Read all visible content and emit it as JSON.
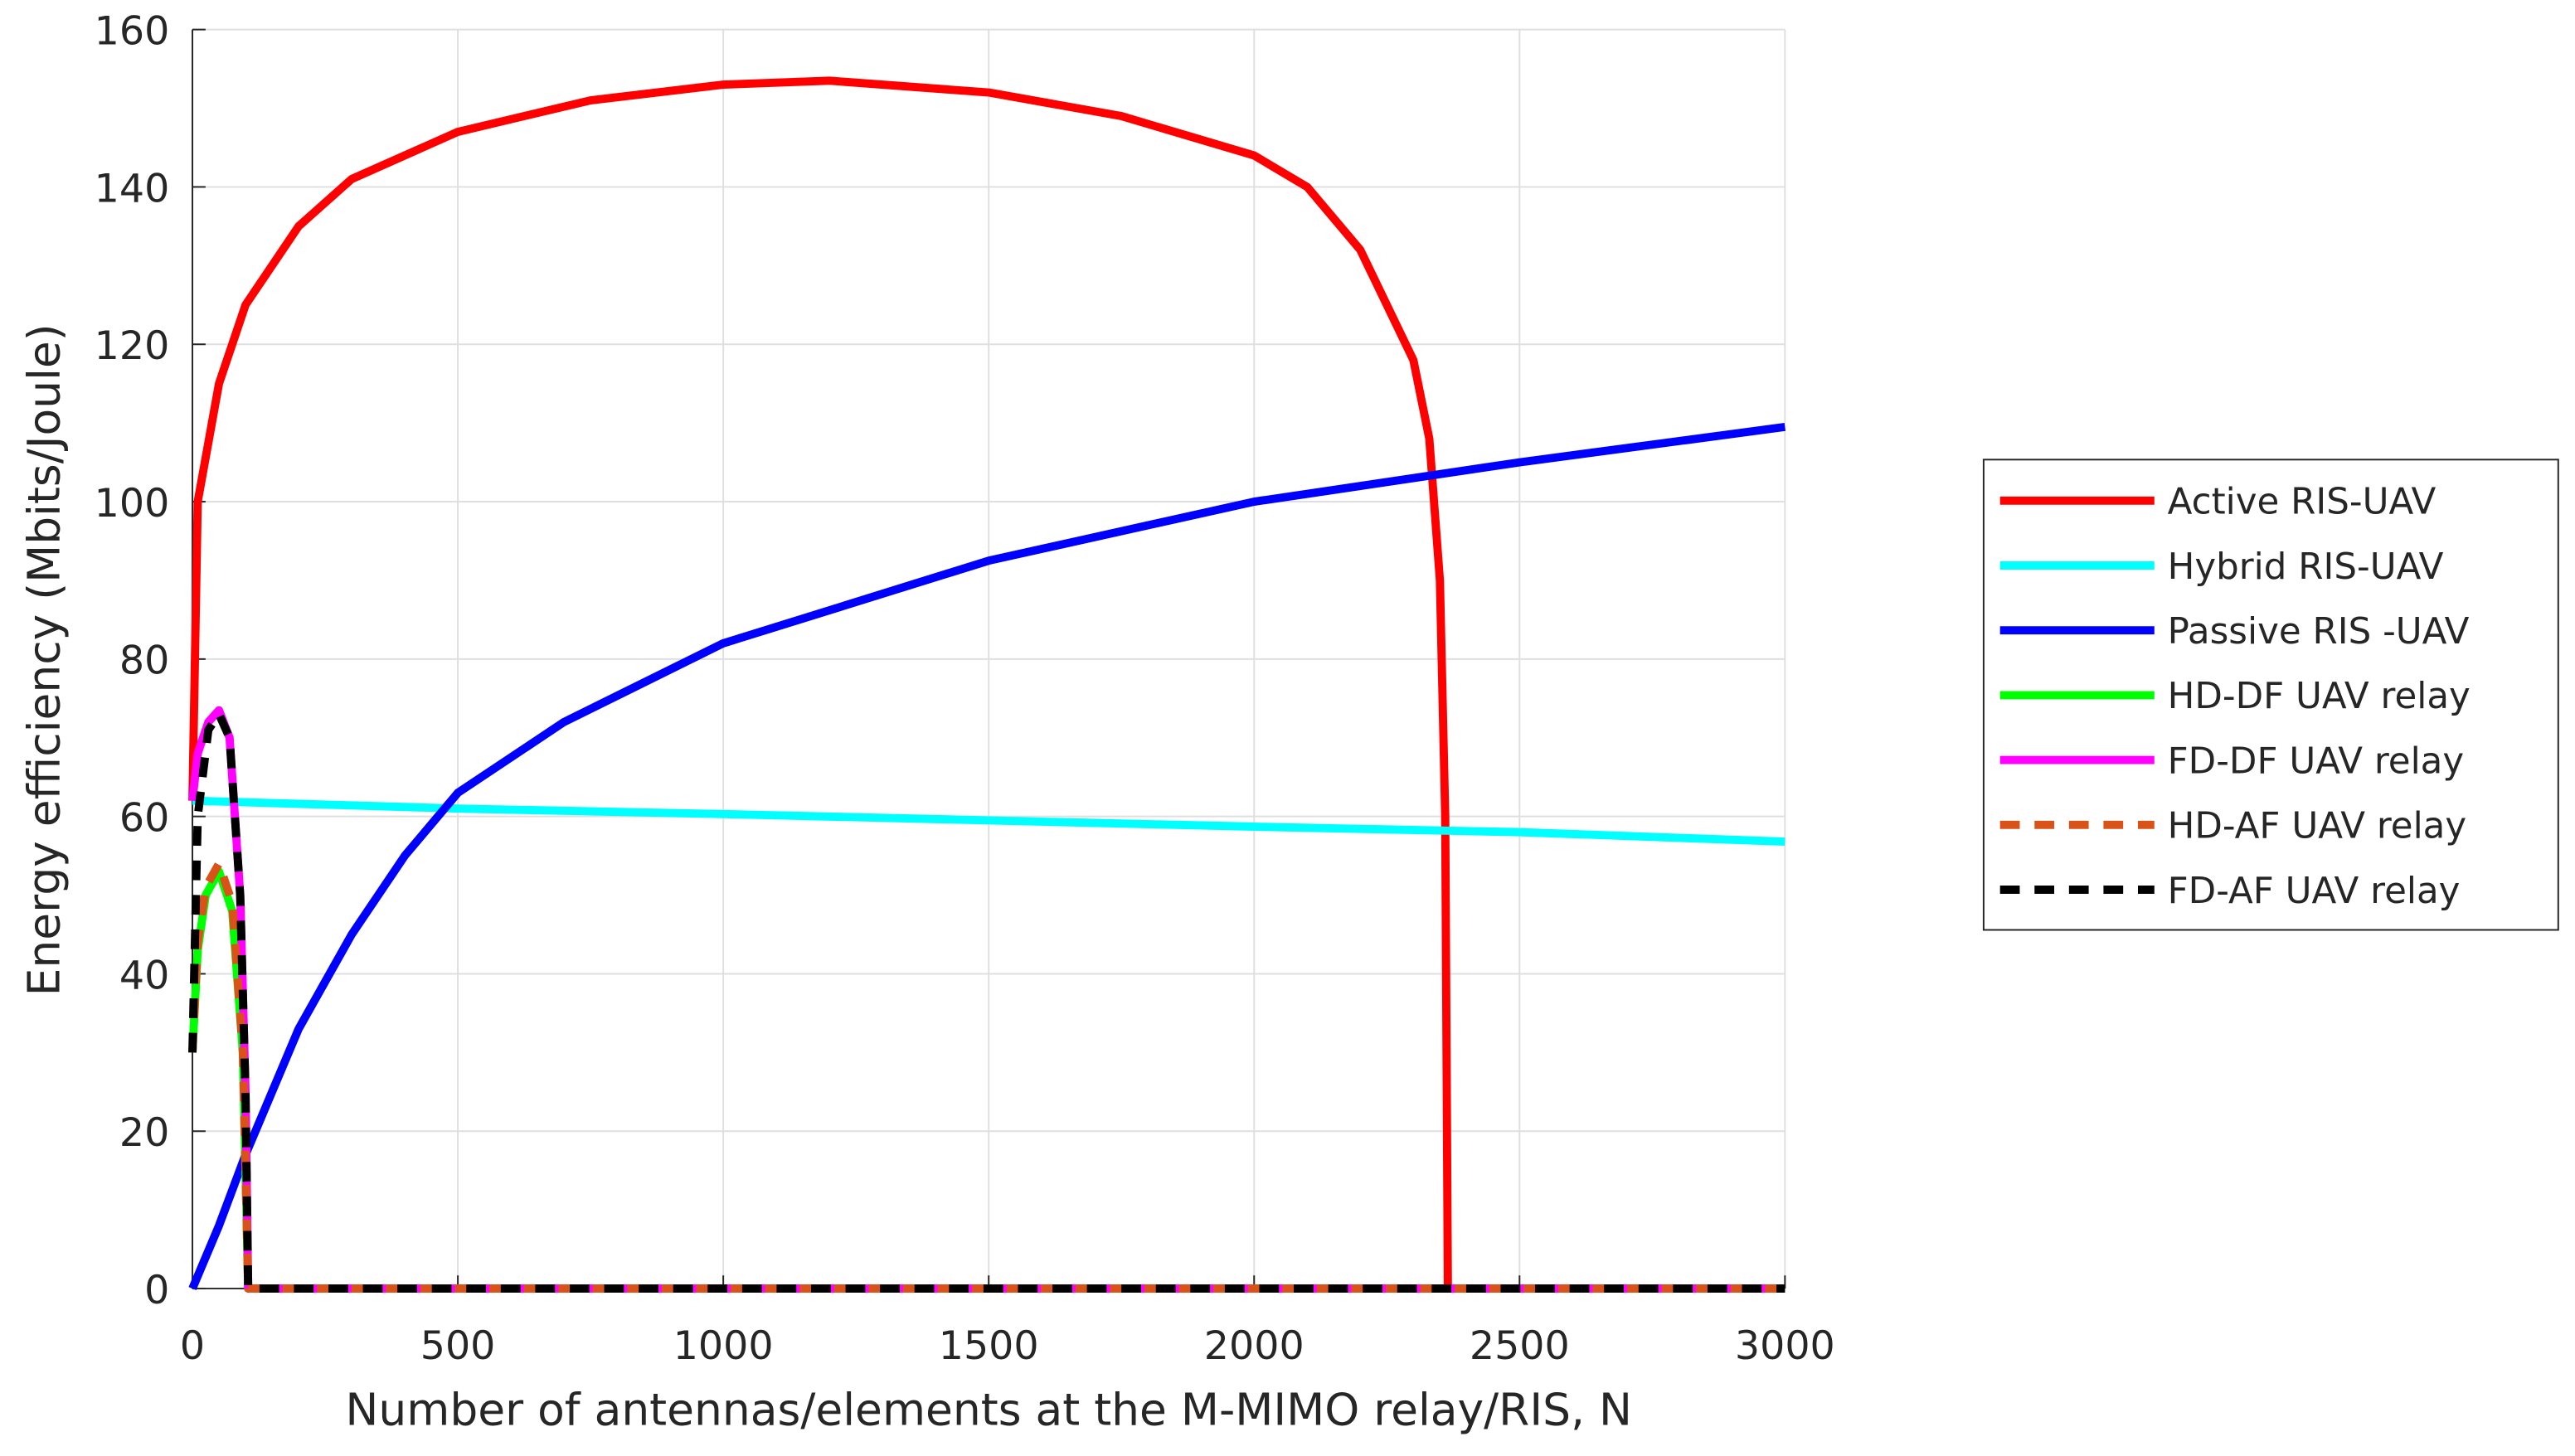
{
  "chart_data": {
    "type": "line",
    "xlabel": "Number of antennas/elements at the M-MIMO relay/RIS, N",
    "ylabel": "Energy efficiency (Mbits/Joule)",
    "xlim": [
      0,
      3000
    ],
    "xticks": [
      0,
      500,
      1000,
      1500,
      2000,
      2500,
      3000
    ],
    "ylim": [
      0,
      160
    ],
    "yticks": [
      0,
      20,
      40,
      60,
      80,
      100,
      120,
      140,
      160
    ],
    "grid": true,
    "legend": "right",
    "series": [
      {
        "name": "Active RIS-UAV",
        "color": "#ff0000",
        "dash": false,
        "x": [
          0,
          10,
          50,
          100,
          200,
          300,
          500,
          750,
          1000,
          1200,
          1500,
          1750,
          2000,
          2100,
          2200,
          2300,
          2330,
          2350,
          2360,
          2365,
          3000
        ],
        "values": [
          62,
          100,
          115,
          125,
          135,
          141,
          147,
          151,
          153,
          153.5,
          152,
          149,
          144,
          140,
          132,
          118,
          108,
          90,
          60,
          0,
          0
        ]
      },
      {
        "name": "Hybrid RIS-UAV",
        "color": "#00ffff",
        "dash": false,
        "x": [
          0,
          500,
          1000,
          1500,
          2000,
          2500,
          3000
        ],
        "values": [
          62,
          61,
          60.3,
          59.5,
          58.7,
          58,
          56.8
        ]
      },
      {
        "name": "Passive RIS -UAV",
        "color": "#0000ff",
        "dash": false,
        "x": [
          0,
          50,
          100,
          200,
          300,
          400,
          500,
          700,
          1000,
          1500,
          2000,
          2500,
          3000
        ],
        "values": [
          0,
          8,
          17,
          33,
          45,
          55,
          63,
          72,
          82,
          92.5,
          100,
          105,
          109.5
        ]
      },
      {
        "name": "HD-DF UAV relay",
        "color": "#00ff00",
        "dash": false,
        "x": [
          0,
          10,
          25,
          50,
          75,
          95,
          105,
          3000
        ],
        "values": [
          30,
          43,
          50,
          53,
          48,
          30,
          0,
          0
        ]
      },
      {
        "name": "FD-DF UAV relay",
        "color": "#ff00ff",
        "dash": false,
        "x": [
          0,
          10,
          30,
          50,
          70,
          90,
          100,
          105,
          3000
        ],
        "values": [
          62,
          68,
          72,
          73.5,
          70,
          50,
          25,
          0,
          0
        ]
      },
      {
        "name": "HD-AF UAV relay",
        "color": "#d95319",
        "dash": true,
        "x": [
          0,
          10,
          25,
          50,
          75,
          95,
          105,
          3000
        ],
        "values": [
          30,
          44,
          51,
          54,
          49,
          30,
          0,
          0
        ]
      },
      {
        "name": "FD-AF UAV relay",
        "color": "#000000",
        "dash": true,
        "x": [
          0,
          10,
          30,
          50,
          70,
          90,
          100,
          105,
          3000
        ],
        "values": [
          30,
          60,
          71,
          73,
          70,
          50,
          25,
          0,
          0
        ]
      }
    ]
  }
}
